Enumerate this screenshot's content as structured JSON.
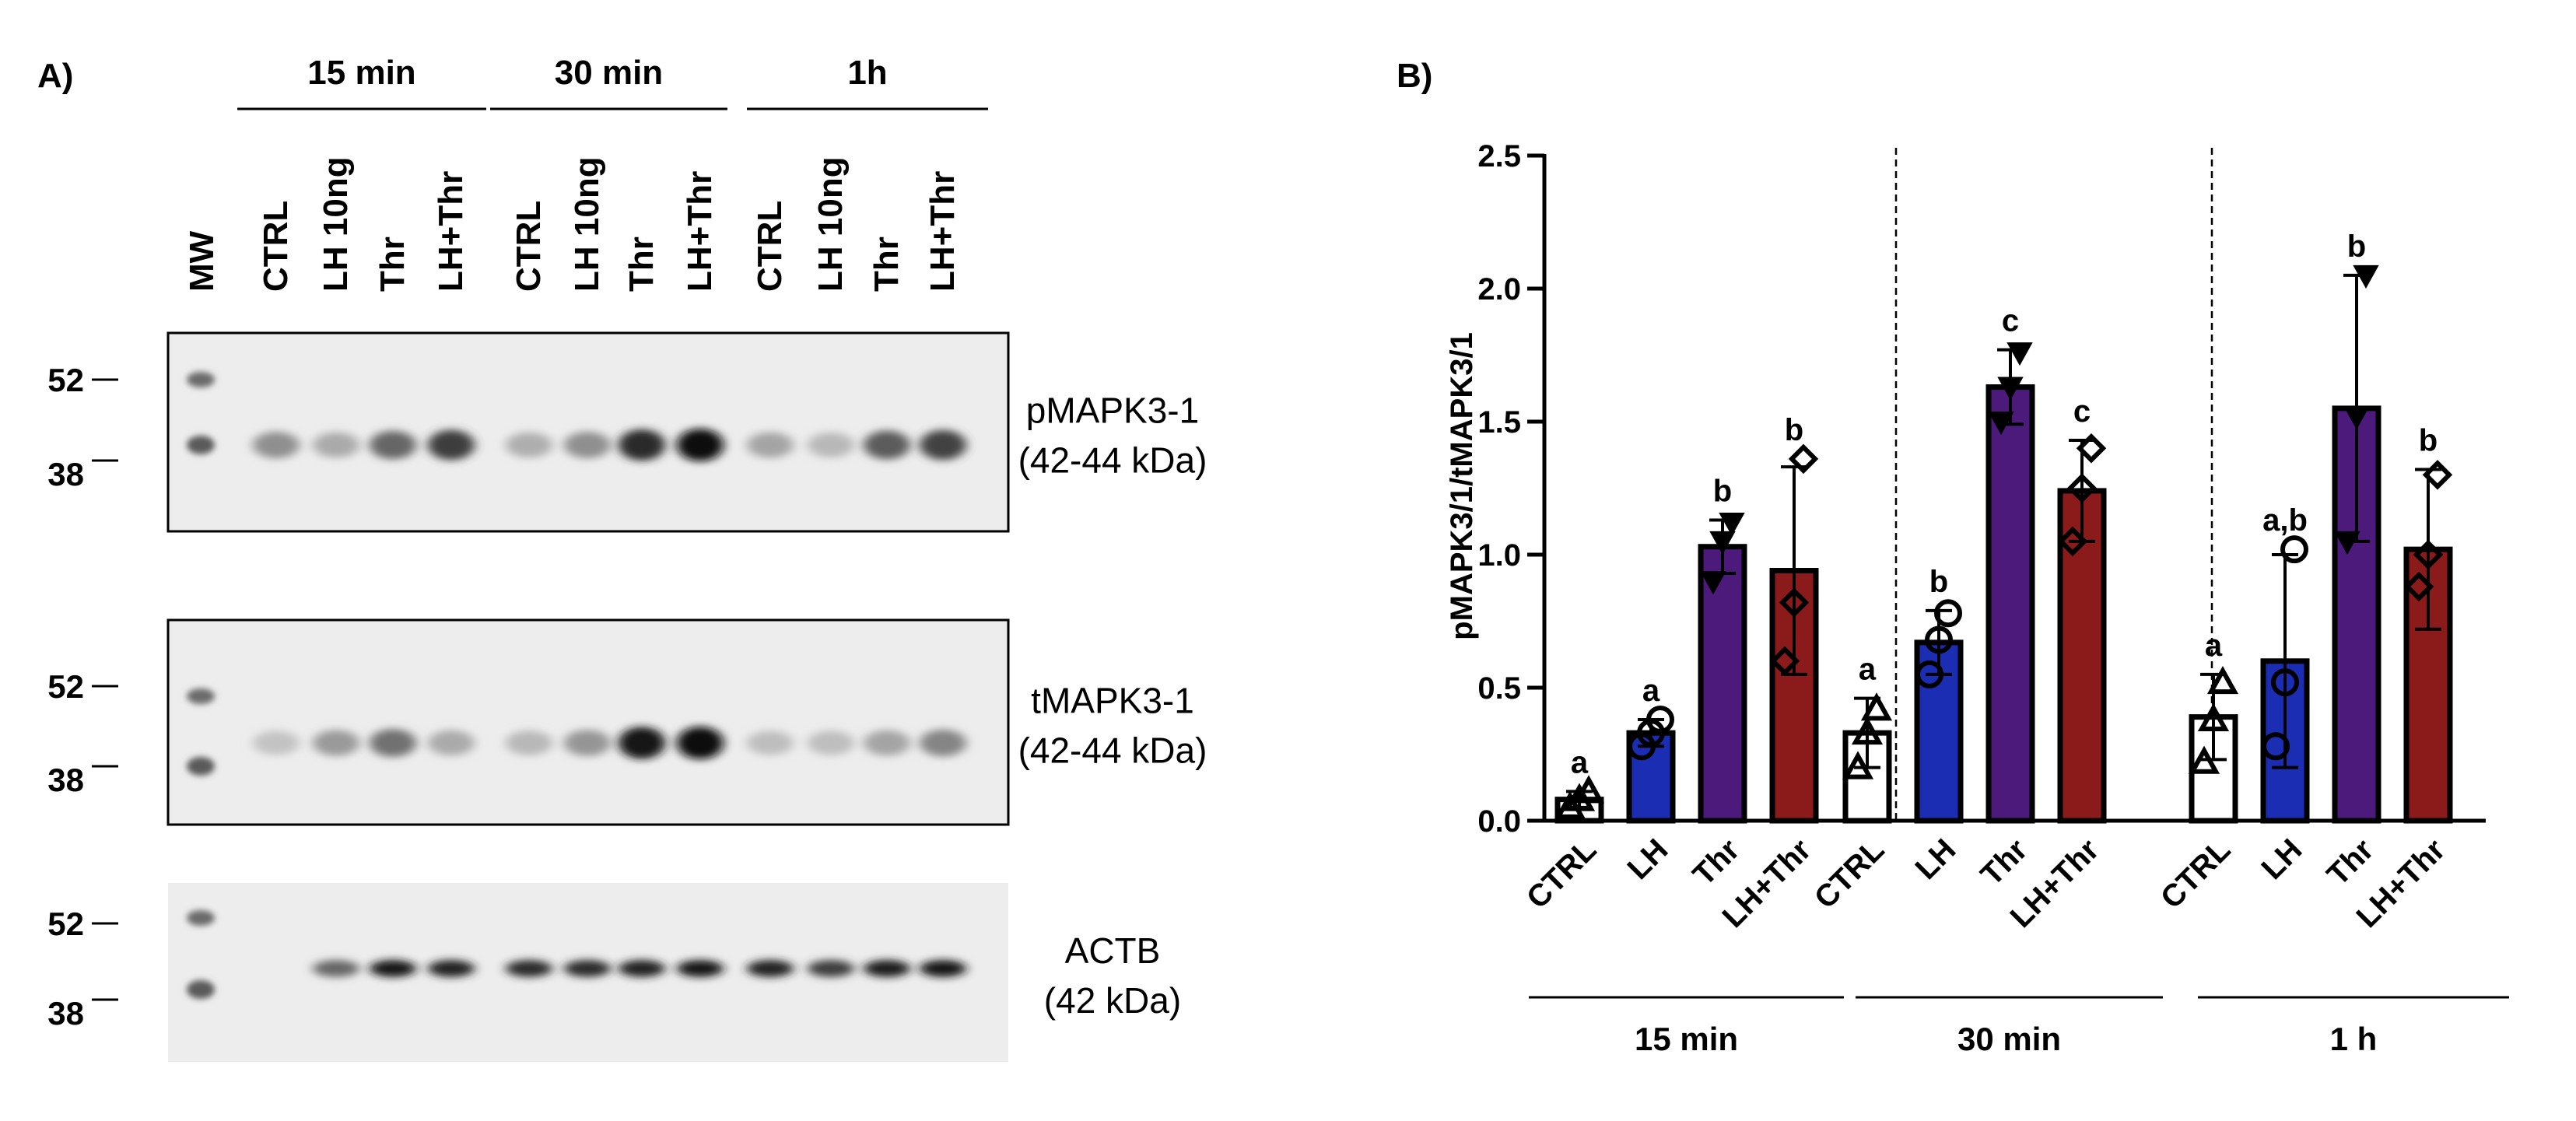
{
  "panel_a": {
    "label": "A)",
    "mw_label": "MW",
    "time_groups": [
      {
        "label": "15 min",
        "lanes": [
          "CTRL",
          "LH 10ng",
          "Thr",
          "LH+Thr"
        ]
      },
      {
        "label": "30 min",
        "lanes": [
          "CTRL",
          "LH 10ng",
          "Thr",
          "LH+Thr"
        ]
      },
      {
        "label": "1h",
        "lanes": [
          "CTRL",
          "LH 10ng",
          "Thr",
          "LH+Thr"
        ]
      }
    ],
    "blots": [
      {
        "name_line1": "pMAPK3-1",
        "name_line2": "(42-44 kDa)",
        "markers": [
          "52",
          "38"
        ],
        "intensities": [
          0.35,
          0.22,
          0.55,
          0.75,
          0.2,
          0.35,
          0.85,
          1.0,
          0.25,
          0.15,
          0.6,
          0.72
        ]
      },
      {
        "name_line1": "tMAPK3-1",
        "name_line2": "(42-44 kDa)",
        "markers": [
          "52",
          "38"
        ],
        "intensities": [
          0.1,
          0.3,
          0.5,
          0.22,
          0.15,
          0.32,
          0.95,
          1.0,
          0.12,
          0.12,
          0.25,
          0.4
        ]
      },
      {
        "name_line1": "ACTB",
        "name_line2": "(42 kDa)",
        "markers": [
          "52",
          "38"
        ],
        "intensities": [
          0.0,
          0.55,
          0.95,
          0.88,
          0.85,
          0.85,
          0.88,
          0.95,
          0.88,
          0.75,
          0.9,
          0.95
        ]
      }
    ]
  },
  "panel_b": {
    "label": "B)"
  },
  "chart_data": {
    "type": "bar",
    "ylabel": "pMAPK3/1/tMAPK3/1",
    "ylim": [
      0,
      2.5
    ],
    "yticks": [
      "0.0",
      "0.5",
      "1.0",
      "1.5",
      "2.0",
      "2.5"
    ],
    "groups": [
      {
        "label": "15 min",
        "bars": [
          {
            "category": "CTRL",
            "value": 0.08,
            "sd": 0.03,
            "letter": "a",
            "fill": "#ffffff",
            "marker": "triangle",
            "points": [
              0.05,
              0.08,
              0.11
            ]
          },
          {
            "category": "LH",
            "value": 0.33,
            "sd": 0.05,
            "letter": "a",
            "fill": "#1a2db3",
            "marker": "circle",
            "points": [
              0.28,
              0.33,
              0.38
            ]
          },
          {
            "category": "Thr",
            "value": 1.03,
            "sd": 0.1,
            "letter": "b",
            "fill": "#4b1a7a",
            "marker": "triangle-down",
            "points": [
              0.9,
              1.05,
              1.12
            ]
          },
          {
            "category": "LH+Thr",
            "value": 0.94,
            "sd": 0.39,
            "letter": "b",
            "fill": "#8b1a1a",
            "marker": "diamond",
            "points": [
              0.6,
              0.82,
              1.36
            ]
          }
        ]
      },
      {
        "label": "30 min",
        "bars": [
          {
            "category": "CTRL",
            "value": 0.33,
            "sd": 0.13,
            "letter": "a",
            "fill": "#ffffff",
            "marker": "triangle",
            "points": [
              0.2,
              0.33,
              0.42
            ]
          },
          {
            "category": "LH",
            "value": 0.67,
            "sd": 0.12,
            "letter": "b",
            "fill": "#1a2db3",
            "marker": "circle",
            "points": [
              0.55,
              0.68,
              0.78
            ]
          },
          {
            "category": "Thr",
            "value": 1.63,
            "sd": 0.14,
            "letter": "c",
            "fill": "#4b1a7a",
            "marker": "triangle-down",
            "points": [
              1.5,
              1.63,
              1.76
            ]
          },
          {
            "category": "LH+Thr",
            "value": 1.24,
            "sd": 0.19,
            "letter": "c",
            "fill": "#8b1a1a",
            "marker": "diamond",
            "points": [
              1.05,
              1.25,
              1.4
            ]
          }
        ]
      },
      {
        "label": "1 h",
        "bars": [
          {
            "category": "CTRL",
            "value": 0.39,
            "sd": 0.16,
            "letter": "a",
            "fill": "#ffffff",
            "marker": "triangle",
            "points": [
              0.22,
              0.38,
              0.52
            ]
          },
          {
            "category": "LH",
            "value": 0.6,
            "sd": 0.4,
            "letter": "a,b",
            "fill": "#1a2db3",
            "marker": "circle",
            "points": [
              0.28,
              0.52,
              1.02
            ]
          },
          {
            "category": "Thr",
            "value": 1.55,
            "sd": 0.5,
            "letter": "b",
            "fill": "#4b1a7a",
            "marker": "triangle-down",
            "points": [
              1.05,
              1.52,
              2.05
            ]
          },
          {
            "category": "LH+Thr",
            "value": 1.02,
            "sd": 0.3,
            "letter": "b",
            "fill": "#8b1a1a",
            "marker": "diamond",
            "points": [
              0.88,
              1.0,
              1.3
            ]
          }
        ]
      }
    ]
  }
}
